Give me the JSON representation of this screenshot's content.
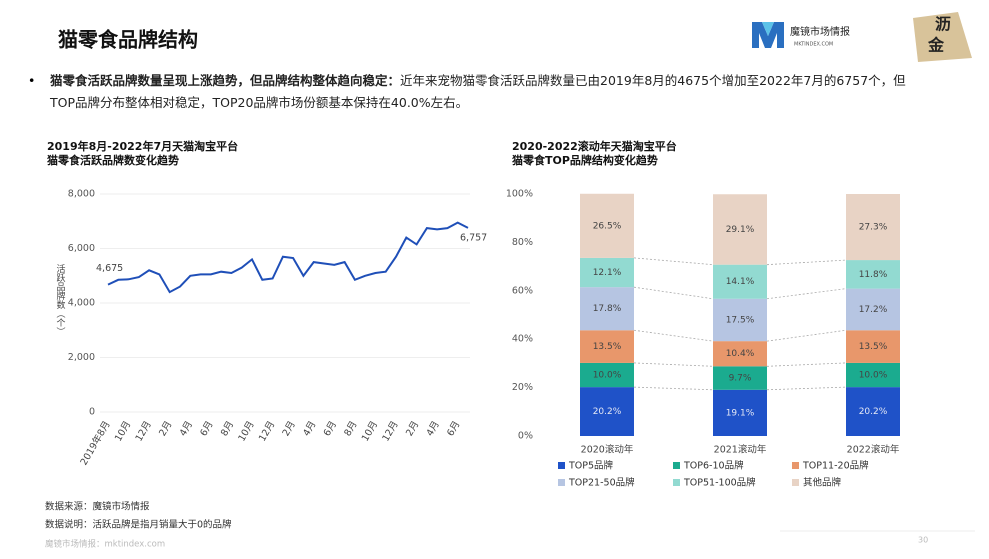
{
  "header": {
    "title": "猫零食品牌结构",
    "logo_text": "魔镜市场情报",
    "logo_sub": "MKTINDEX.COM",
    "badge_top": "沥",
    "badge_bottom": "金"
  },
  "summary": {
    "lead": "猫零食活跃品牌数量呈现上涨趋势，但品牌结构整体趋向稳定：",
    "text": "近年来宠物猫零食活跃品牌数量已由2019年8月的4675个增加至2022年7月的6757个，但TOP品牌分布整体相对稳定，TOP20品牌市场份额基本保持在40.0%左右。"
  },
  "chart_data": [
    {
      "type": "line",
      "title": [
        "2019年8月-2022年7月天猫淘宝平台",
        "猫零食活跃品牌数变化趋势"
      ],
      "y_label": "活跃品牌数（个）",
      "categories": [
        "2019年8月",
        null,
        "10月",
        null,
        "12月",
        null,
        "2月",
        null,
        "4月",
        null,
        "6月",
        null,
        "8月",
        null,
        "10月",
        null,
        "12月",
        null,
        "2月",
        null,
        "4月",
        null,
        "6月",
        null,
        "8月",
        null,
        "10月",
        null,
        "12月",
        null,
        "2月",
        null,
        "4月",
        null,
        "6月",
        null
      ],
      "values": [
        4675,
        4850,
        4870,
        4950,
        5200,
        5050,
        4400,
        4600,
        5000,
        5050,
        5050,
        5150,
        5100,
        5300,
        5600,
        4850,
        4900,
        5700,
        5650,
        5000,
        5500,
        5450,
        5400,
        5500,
        4850,
        5000,
        5100,
        5150,
        5700,
        6400,
        6150,
        6750,
        6700,
        6750,
        6950,
        6757
      ],
      "value_labels": [
        "4,675",
        null,
        null,
        null,
        null,
        null,
        null,
        null,
        null,
        null,
        null,
        null,
        null,
        null,
        null,
        null,
        null,
        null,
        null,
        null,
        null,
        null,
        null,
        null,
        null,
        null,
        null,
        null,
        null,
        null,
        null,
        null,
        null,
        null,
        null,
        "6,757"
      ],
      "color": "#1f4fb8",
      "ylim": [
        0,
        8000
      ],
      "yticks": [
        0,
        {
          "value": 2000,
          "label": "2,000"
        },
        {
          "value": 4000,
          "label": "4,000"
        },
        {
          "value": 6000,
          "label": "6,000"
        },
        {
          "value": 8000,
          "label": "8,000"
        }
      ],
      "grid": true
    },
    {
      "type": "stacked_bar",
      "title": [
        "2020-2022滚动年天猫淘宝平台",
        "猫零食TOP品牌结构变化趋势"
      ],
      "categories": [
        "2020滚动年",
        "2021滚动年",
        "2022滚动年"
      ],
      "series": [
        {
          "name": "TOP5品牌",
          "color": "#1f52c8",
          "values": [
            20.2,
            19.1,
            20.2
          ],
          "value_labels": [
            "20.2%",
            "19.1%",
            "20.2%"
          ]
        },
        {
          "name": "TOP6-10品牌",
          "color": "#1bab8f",
          "values": [
            10.0,
            9.7,
            10.0
          ],
          "value_labels": [
            "10.0%",
            "9.7%",
            "10.0%"
          ]
        },
        {
          "name": "TOP11-20品牌",
          "color": "#e8976b",
          "values": [
            13.5,
            10.4,
            13.5
          ],
          "value_labels": [
            "13.5%",
            "10.4%",
            "13.5%"
          ]
        },
        {
          "name": "TOP21-50品牌",
          "color": "#b6c5e2",
          "values": [
            17.8,
            17.5,
            17.2
          ],
          "value_labels": [
            "17.8%",
            "17.5%",
            "17.2%"
          ]
        },
        {
          "name": "TOP51-100品牌",
          "color": "#92dad1",
          "values": [
            12.1,
            14.1,
            11.8
          ],
          "value_labels": [
            "12.1%",
            "14.1%",
            "11.8%"
          ]
        },
        {
          "name": "其他品牌",
          "color": "#e8d3c5",
          "values": [
            26.5,
            29.1,
            27.3
          ],
          "value_labels": [
            "26.5%",
            "29.1%",
            "27.3%"
          ]
        }
      ],
      "ylim": [
        0,
        100
      ],
      "yticks": [
        {
          "value": 0,
          "label": "0%"
        },
        {
          "value": 20,
          "label": "20%"
        },
        {
          "value": 40,
          "label": "40%"
        },
        {
          "value": 60,
          "label": "60%"
        },
        {
          "value": 80,
          "label": "80%"
        },
        {
          "value": 100,
          "label": "100%"
        }
      ],
      "grid": false
    }
  ],
  "footer": {
    "source": "数据来源：魔镜市场情报",
    "note": "数据说明：活跃品牌是指月销量大于0的品牌",
    "site": "魔镜市场情报：mktindex.com",
    "page": "30"
  }
}
